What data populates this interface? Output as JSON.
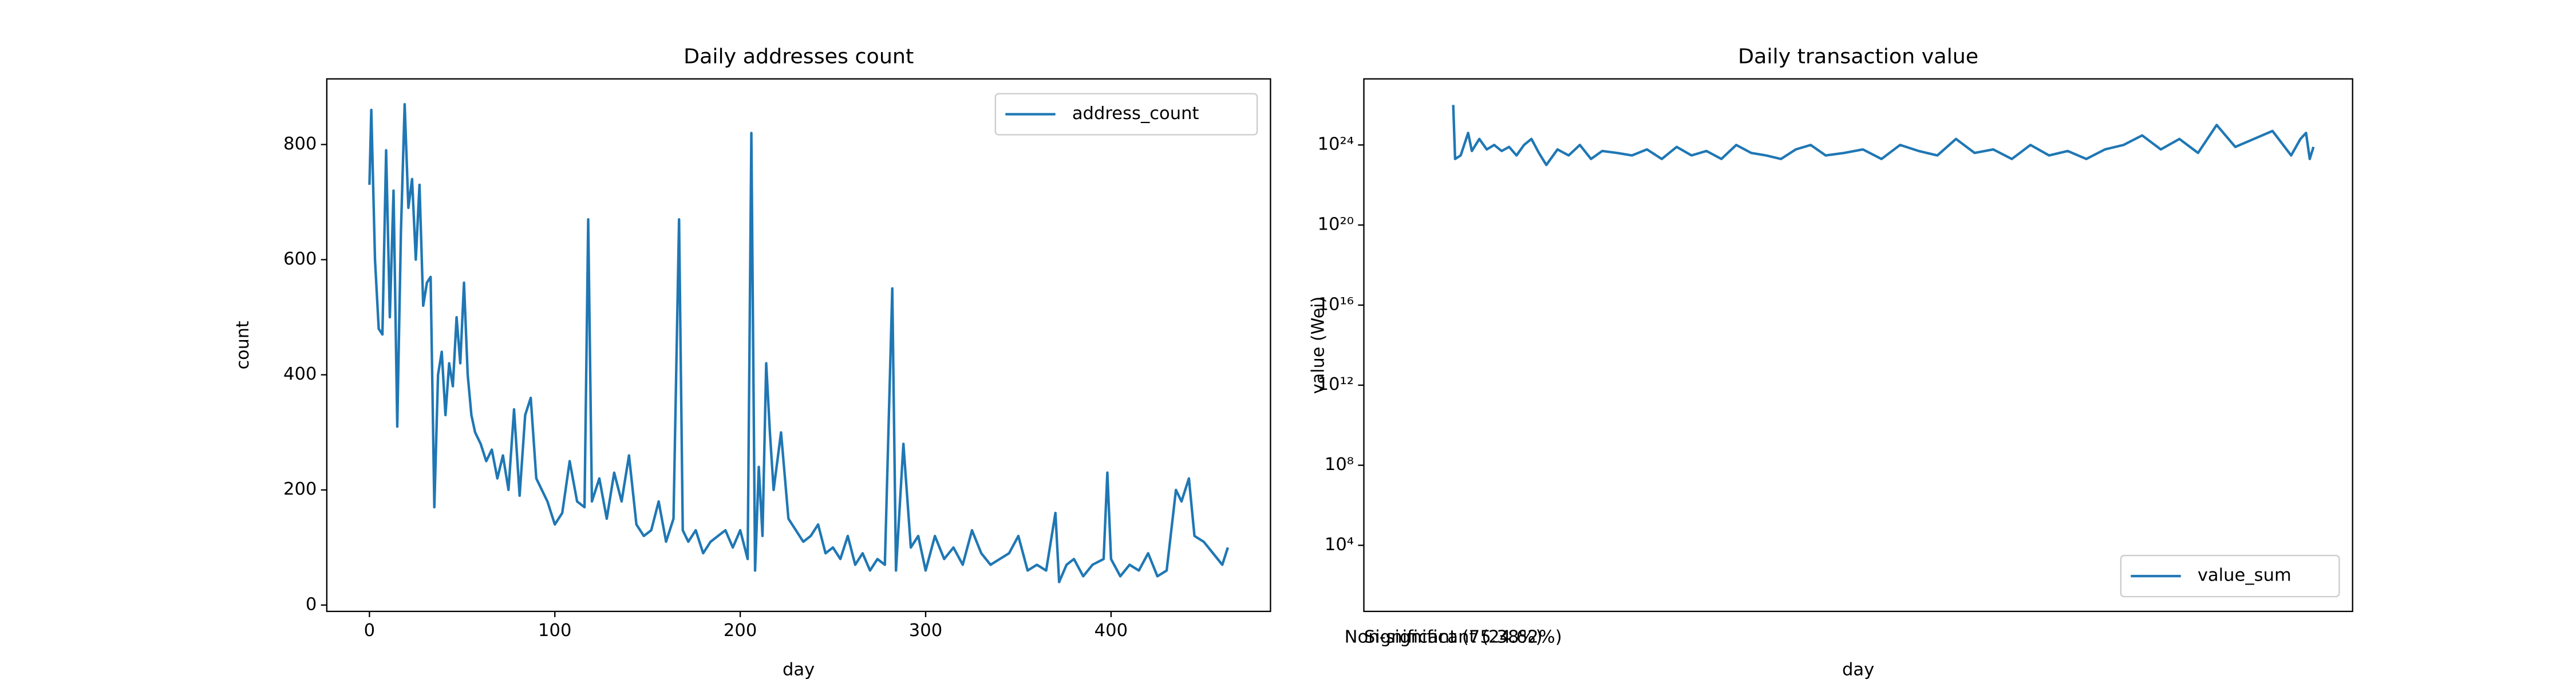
{
  "chart_data": [
    {
      "type": "line",
      "title": "Daily addresses count",
      "xlabel": "day",
      "ylabel": "count",
      "x": [
        0,
        1,
        3,
        5,
        7,
        9,
        11,
        13,
        15,
        17,
        19,
        21,
        23,
        25,
        27,
        29,
        31,
        33,
        35,
        37,
        39,
        41,
        43,
        45,
        47,
        49,
        51,
        53,
        55,
        57,
        60,
        63,
        66,
        69,
        72,
        75,
        78,
        81,
        84,
        87,
        90,
        93,
        96,
        100,
        104,
        108,
        112,
        116,
        118,
        120,
        124,
        128,
        132,
        136,
        140,
        144,
        148,
        152,
        156,
        160,
        164,
        167,
        169,
        172,
        176,
        180,
        184,
        188,
        192,
        196,
        200,
        204,
        206,
        208,
        210,
        212,
        214,
        216,
        218,
        222,
        226,
        230,
        234,
        238,
        242,
        246,
        250,
        254,
        258,
        262,
        266,
        270,
        274,
        278,
        282,
        284,
        288,
        292,
        296,
        300,
        305,
        310,
        315,
        320,
        325,
        330,
        335,
        340,
        345,
        350,
        355,
        360,
        365,
        370,
        372,
        376,
        380,
        385,
        390,
        396,
        398,
        400,
        405,
        410,
        415,
        420,
        425,
        430,
        435,
        438,
        442,
        445,
        450,
        455,
        460,
        463
      ],
      "series": [
        {
          "name": "address_count",
          "color": "#1f77b4",
          "values": [
            730,
            860,
            600,
            480,
            470,
            790,
            500,
            720,
            310,
            650,
            870,
            690,
            740,
            600,
            730,
            520,
            560,
            570,
            170,
            400,
            440,
            330,
            420,
            380,
            500,
            420,
            560,
            400,
            330,
            300,
            280,
            250,
            270,
            220,
            260,
            200,
            340,
            190,
            330,
            360,
            220,
            200,
            180,
            140,
            160,
            250,
            180,
            170,
            670,
            180,
            220,
            150,
            230,
            180,
            260,
            140,
            120,
            130,
            180,
            110,
            150,
            670,
            130,
            110,
            130,
            90,
            110,
            120,
            130,
            100,
            130,
            80,
            820,
            60,
            240,
            120,
            420,
            300,
            200,
            300,
            150,
            130,
            110,
            120,
            140,
            90,
            100,
            80,
            120,
            70,
            90,
            60,
            80,
            70,
            550,
            60,
            280,
            100,
            120,
            60,
            120,
            80,
            100,
            70,
            130,
            90,
            70,
            80,
            90,
            120,
            60,
            70,
            60,
            160,
            40,
            70,
            80,
            50,
            70,
            80,
            230,
            80,
            50,
            70,
            60,
            90,
            50,
            60,
            200,
            180,
            220,
            120,
            110,
            90,
            70,
            100
          ]
        }
      ],
      "xlim": [
        -23,
        486
      ],
      "xticks": [
        0,
        100,
        200,
        300,
        400
      ],
      "ylim": [
        -11,
        914
      ],
      "yticks": [
        0,
        200,
        400,
        600,
        800
      ],
      "legend": "upper right"
    },
    {
      "type": "line",
      "title": "Daily transaction value",
      "xlabel": "day",
      "ylabel": "value (Wei)",
      "yscale": "log",
      "x": [
        0,
        1,
        4,
        8,
        10,
        14,
        18,
        22,
        26,
        30,
        34,
        38,
        42,
        46,
        50,
        56,
        62,
        68,
        74,
        80,
        88,
        96,
        104,
        112,
        120,
        128,
        136,
        144,
        152,
        160,
        168,
        176,
        184,
        192,
        200,
        210,
        220,
        230,
        240,
        250,
        260,
        270,
        280,
        290,
        300,
        310,
        320,
        330,
        340,
        350,
        360,
        370,
        380,
        390,
        400,
        410,
        420,
        430,
        440,
        450,
        455,
        458,
        460,
        462
      ],
      "series": [
        {
          "name": "value_sum",
          "color": "#1f77b4",
          "values": [
            1e+26,
            2e+23,
            3e+23,
            4e+24,
            5e+23,
            2e+24,
            6e+23,
            1e+24,
            5e+23,
            8e+23,
            3e+23,
            1e+24,
            2e+24,
            4e+23,
            1e+23,
            6e+23,
            3e+23,
            1e+24,
            2e+23,
            5e+23,
            4e+23,
            3e+23,
            6e+23,
            2e+23,
            8e+23,
            3e+23,
            5e+23,
            2e+23,
            1e+24,
            4e+23,
            3e+23,
            2e+23,
            6e+23,
            1e+24,
            3e+23,
            4e+23,
            6e+23,
            2e+23,
            1e+24,
            5e+23,
            3e+23,
            2e+24,
            4e+23,
            6e+23,
            2e+23,
            1e+24,
            3e+23,
            5e+23,
            2e+23,
            6e+23,
            1e+24,
            3e+24,
            6e+23,
            2e+24,
            4e+23,
            1e+25,
            8e+23,
            2e+24,
            5e+24,
            3e+23,
            2e+24,
            4e+24,
            2e+23,
            8e+23
          ]
        }
      ],
      "xlim": [
        -48,
        483
      ],
      "ylim": [
        5,
        2e+27
      ],
      "yticks": [
        {
          "value": 10000,
          "label": "10⁴"
        },
        {
          "value": 100000000.0,
          "label": "10⁸"
        },
        {
          "value": 1000000000000.0,
          "label": "10¹²"
        },
        {
          "value": 1e+16,
          "label": "10¹⁶"
        },
        {
          "value": 1e+20,
          "label": "10²⁰"
        },
        {
          "value": 1e+24,
          "label": "10²⁴"
        }
      ],
      "legend": "lower right",
      "annotations": [
        "Non-significant (24.62%)",
        "Significant (75.38%)"
      ]
    }
  ]
}
